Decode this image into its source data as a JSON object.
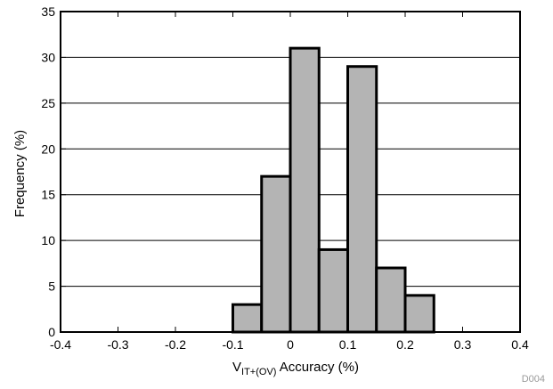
{
  "chart_data": {
    "type": "bar",
    "subtype": "histogram",
    "bin_edges": [
      -0.1,
      -0.05,
      0,
      0.05,
      0.1,
      0.15,
      0.2,
      0.25
    ],
    "values": [
      3,
      17,
      31,
      9,
      29,
      7,
      4
    ],
    "xlim": [
      -0.4,
      0.4
    ],
    "ylim": [
      0,
      35
    ],
    "xticks": [
      "-0.4",
      "-0.3",
      "-0.2",
      "-0.1",
      "0",
      "0.1",
      "0.2",
      "0.3",
      "0.4"
    ],
    "yticks": [
      "0",
      "5",
      "10",
      "15",
      "20",
      "25",
      "30",
      "35"
    ],
    "xlabel_main": "V",
    "xlabel_sub": "IT+(OV)",
    "xlabel_rest": " Accuracy (%)",
    "ylabel": "Frequency (%)",
    "grid": "horizontal",
    "bar_color": "#b4b4b4",
    "bar_edge_color": "#000000"
  },
  "figure_id": "D004"
}
